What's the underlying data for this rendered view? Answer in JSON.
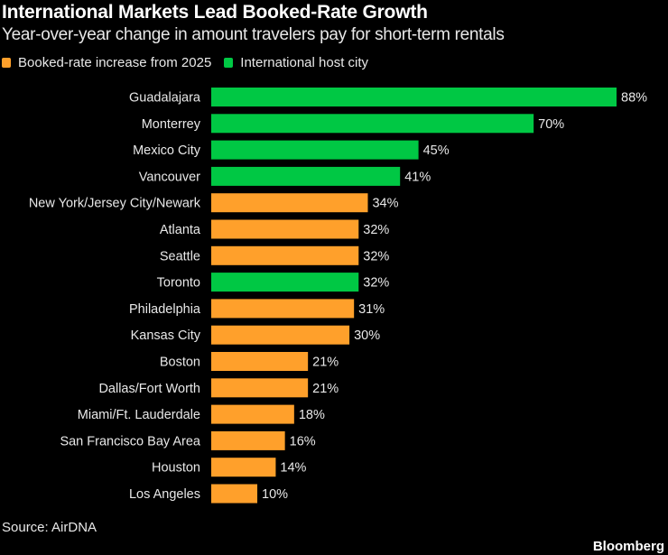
{
  "chart_data": {
    "type": "bar",
    "orientation": "horizontal",
    "title": "International Markets Lead Booked-Rate Growth",
    "subtitle": "Year-over-year change in amount travelers pay for short-term rentals",
    "legend": [
      {
        "label": "Booked-rate increase from 2025",
        "color": "#ffa02b"
      },
      {
        "label": "International host city",
        "color": "#00c844"
      }
    ],
    "legend_placement": "top-left",
    "categories": [
      "Guadalajara",
      "Monterrey",
      "Mexico City",
      "Vancouver",
      "New York/Jersey City/Newark",
      "Atlanta",
      "Seattle",
      "Toronto",
      "Philadelphia",
      "Kansas City",
      "Boston",
      "Dallas/Fort Worth",
      "Miami/Ft. Lauderdale",
      "San Francisco Bay Area",
      "Houston",
      "Los Angeles"
    ],
    "values": [
      88,
      70,
      45,
      41,
      34,
      32,
      32,
      32,
      31,
      30,
      21,
      21,
      18,
      16,
      14,
      10
    ],
    "international": [
      true,
      true,
      true,
      true,
      false,
      false,
      false,
      true,
      false,
      false,
      false,
      false,
      false,
      false,
      false,
      false
    ],
    "value_labels": [
      "88%",
      "70%",
      "45%",
      "41%",
      "34%",
      "32%",
      "32%",
      "32%",
      "31%",
      "30%",
      "21%",
      "21%",
      "18%",
      "16%",
      "14%",
      "10%"
    ],
    "xlim": [
      0,
      88
    ],
    "grid": false,
    "xlabel": "",
    "ylabel": ""
  },
  "source": "Source: AirDNA",
  "brand": "Bloomberg"
}
